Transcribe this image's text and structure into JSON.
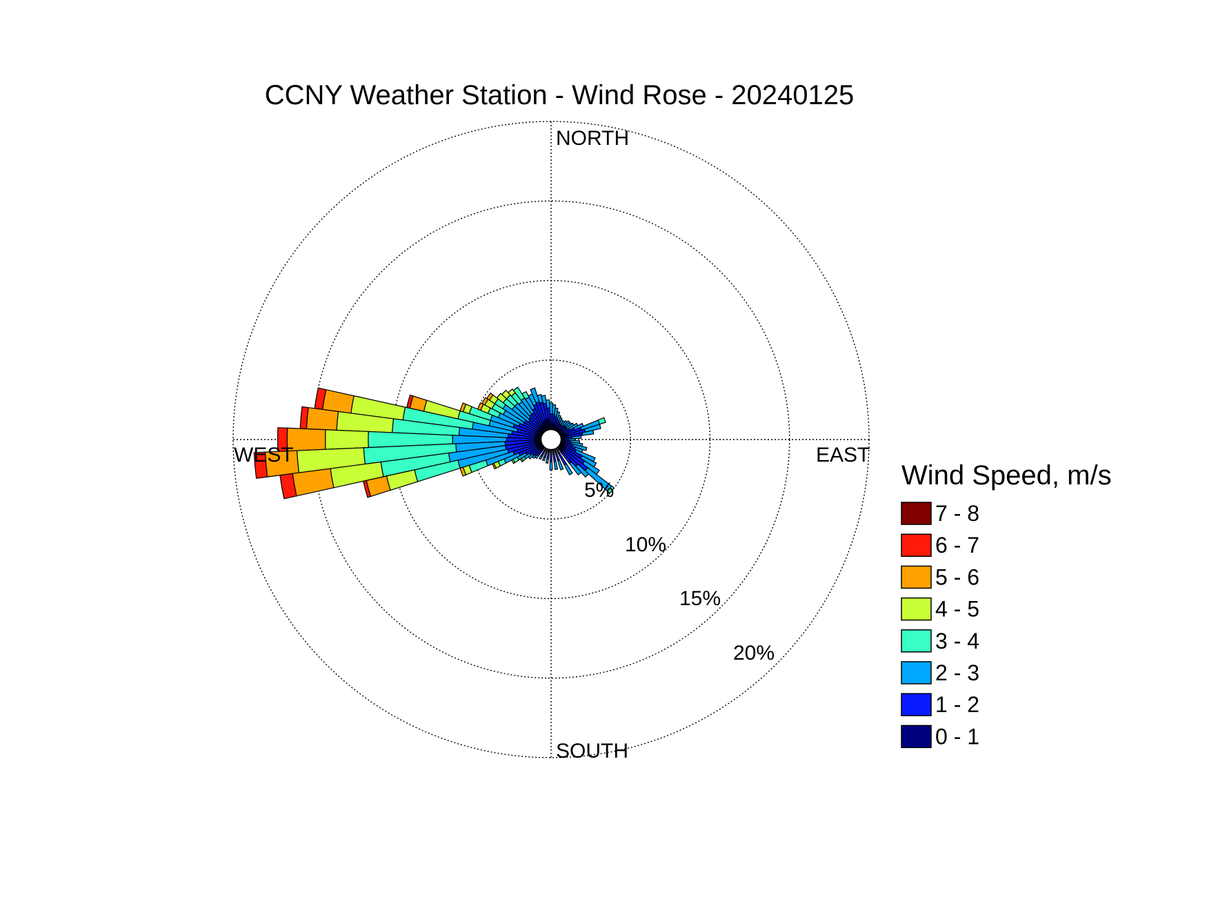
{
  "chart_data": {
    "type": "wind-rose",
    "title": "CCNY Weather Station - Wind Rose - 20240125",
    "direction_labels": {
      "north": "NORTH",
      "east": "EAST",
      "south": "SOUTH",
      "west": "WEST"
    },
    "radial_ticks": [
      {
        "value": 5,
        "label": "5%"
      },
      {
        "value": 10,
        "label": "10%"
      },
      {
        "value": 15,
        "label": "15%"
      },
      {
        "value": 20,
        "label": "20%"
      }
    ],
    "radial_max": 20,
    "units": "percent of observations",
    "grid": true,
    "legend": {
      "title": "Wind Speed, m/s",
      "placement": "right",
      "bins": [
        {
          "label": "7 - 8",
          "color": "#800000"
        },
        {
          "label": "6 - 7",
          "color": "#FF1A0A"
        },
        {
          "label": "5 - 6",
          "color": "#FFA100"
        },
        {
          "label": "4 - 5",
          "color": "#C8FF37"
        },
        {
          "label": "3 - 4",
          "color": "#38FFC4"
        },
        {
          "label": "2 - 3",
          "color": "#00A8FF"
        },
        {
          "label": "1 - 2",
          "color": "#0A1AFF"
        },
        {
          "label": "0 - 1",
          "color": "#00007F"
        }
      ]
    },
    "bin_order": [
      "0 - 1",
      "1 - 2",
      "2 - 3",
      "3 - 4",
      "4 - 5",
      "5 - 6",
      "6 - 7",
      "7 - 8"
    ],
    "sector_width_deg": 5,
    "calm_radius_percent": 0.5,
    "sectors": [
      {
        "direction": 110,
        "cumulative": [
          0.9,
          1.6,
          2.1
        ]
      },
      {
        "direction": 115,
        "cumulative": [
          0.9,
          1.7,
          3.0
        ]
      },
      {
        "direction": 120,
        "cumulative": [
          1.0,
          2.2,
          3.2
        ]
      },
      {
        "direction": 125,
        "cumulative": [
          1.0,
          2.5,
          3.6
        ]
      },
      {
        "direction": 130,
        "cumulative": [
          1.1,
          2.9,
          4.8,
          5.0
        ]
      },
      {
        "direction": 135,
        "cumulative": [
          1.0,
          2.3,
          3.2
        ]
      },
      {
        "direction": 100,
        "cumulative": [
          0.9,
          1.3,
          2.0
        ]
      },
      {
        "direction": 105,
        "cumulative": [
          0.9,
          1.4,
          2.3
        ]
      },
      {
        "direction": 95,
        "cumulative": [
          0.8,
          1.2,
          1.8
        ]
      },
      {
        "direction": 90,
        "cumulative": [
          0.7,
          1.1,
          1.5
        ]
      },
      {
        "direction": 85,
        "cumulative": [
          0.8,
          1.3,
          1.9
        ]
      },
      {
        "direction": 80,
        "cumulative": [
          1.0,
          2.0,
          2.7
        ]
      },
      {
        "direction": 75,
        "cumulative": [
          1.1,
          2.2,
          3.2
        ]
      },
      {
        "direction": 70,
        "cumulative": [
          1.0,
          2.0,
          3.2,
          3.6
        ]
      },
      {
        "direction": 65,
        "cumulative": [
          0.9,
          1.6,
          2.2
        ]
      },
      {
        "direction": 60,
        "cumulative": [
          0.8,
          1.3,
          1.9
        ]
      },
      {
        "direction": 55,
        "cumulative": [
          0.8,
          1.2,
          1.7
        ]
      },
      {
        "direction": 50,
        "cumulative": [
          0.8,
          1.2,
          1.6
        ]
      },
      {
        "direction": 45,
        "cumulative": [
          0.8,
          1.2,
          1.6
        ]
      },
      {
        "direction": 40,
        "cumulative": [
          0.8,
          1.1,
          1.5
        ]
      },
      {
        "direction": 35,
        "cumulative": [
          0.8,
          1.1,
          1.4
        ]
      },
      {
        "direction": 30,
        "cumulative": [
          0.8,
          1.1,
          1.4
        ]
      },
      {
        "direction": 25,
        "cumulative": [
          0.8,
          1.2,
          1.5
        ]
      },
      {
        "direction": 20,
        "cumulative": [
          0.8,
          1.3,
          1.6
        ]
      },
      {
        "direction": 15,
        "cumulative": [
          0.9,
          1.4,
          1.8
        ]
      },
      {
        "direction": 10,
        "cumulative": [
          1.0,
          1.5,
          2.0
        ]
      },
      {
        "direction": 5,
        "cumulative": [
          1.0,
          1.6,
          2.2
        ]
      },
      {
        "direction": 0,
        "cumulative": [
          1.0,
          1.6,
          2.3
        ]
      },
      {
        "direction": 355,
        "cumulative": [
          1.2,
          2.0,
          2.5
        ]
      },
      {
        "direction": 350,
        "cumulative": [
          1.3,
          2.3,
          2.8
        ]
      },
      {
        "direction": 345,
        "cumulative": [
          1.3,
          2.4,
          2.9
        ]
      },
      {
        "direction": 340,
        "cumulative": [
          1.2,
          2.5,
          3.4
        ]
      },
      {
        "direction": 335,
        "cumulative": [
          1.2,
          2.4,
          3.1
        ]
      },
      {
        "direction": 330,
        "cumulative": [
          1.1,
          2.2,
          3.0,
          3.4
        ]
      },
      {
        "direction": 325,
        "cumulative": [
          1.0,
          2.0,
          3.1,
          3.9
        ]
      },
      {
        "direction": 320,
        "cumulative": [
          1.1,
          2.0,
          3.0,
          3.7,
          4.0
        ]
      },
      {
        "direction": 315,
        "cumulative": [
          1.0,
          1.9,
          3.1,
          3.8,
          4.2
        ]
      },
      {
        "direction": 310,
        "cumulative": [
          0.9,
          1.8,
          3.1,
          3.8,
          4.3
        ]
      },
      {
        "direction": 305,
        "cumulative": [
          1.0,
          2.0,
          3.6,
          4.2,
          4.6,
          4.8
        ]
      },
      {
        "direction": 300,
        "cumulative": [
          1.0,
          2.0,
          3.4,
          4.2,
          4.7,
          4.9
        ]
      },
      {
        "direction": 295,
        "cumulative": [
          1.0,
          2.2,
          3.6,
          4.3,
          4.8,
          5.0
        ]
      },
      {
        "direction": 290,
        "cumulative": [
          1.0,
          2.5,
          4.0,
          5.4,
          5.8,
          6.0
        ]
      },
      {
        "direction": 285,
        "cumulative": [
          1.0,
          2.2,
          4.0,
          6.0,
          8.2,
          9.1,
          9.3
        ]
      },
      {
        "direction": 280,
        "cumulative": [
          1.0,
          2.5,
          5.0,
          9.4,
          12.7,
          14.5,
          15.0
        ]
      },
      {
        "direction": 275,
        "cumulative": [
          1.0,
          2.7,
          5.8,
          10.0,
          13.5,
          15.4,
          15.8
        ]
      },
      {
        "direction": 270,
        "cumulative": [
          1.0,
          2.8,
          6.2,
          11.5,
          14.2,
          16.6,
          17.2
        ]
      },
      {
        "direction": 265,
        "cumulative": [
          1.0,
          2.9,
          6.0,
          11.8,
          16.0,
          18.0,
          18.7
        ]
      },
      {
        "direction": 260,
        "cumulative": [
          1.0,
          2.9,
          6.5,
          10.8,
          14.0,
          16.4,
          17.2
        ]
      },
      {
        "direction": 255,
        "cumulative": [
          1.0,
          2.8,
          6.0,
          8.8,
          10.6,
          11.9,
          12.1
        ]
      },
      {
        "direction": 250,
        "cumulative": [
          1.0,
          2.5,
          4.3,
          5.4,
          5.8,
          6.0
        ]
      },
      {
        "direction": 245,
        "cumulative": [
          1.0,
          2.2,
          3.2,
          3.6,
          3.9,
          4.0
        ]
      },
      {
        "direction": 240,
        "cumulative": [
          1.0,
          1.8,
          2.4,
          2.7,
          2.8
        ]
      },
      {
        "direction": 235,
        "cumulative": [
          1.0,
          1.6,
          2.0,
          2.2,
          2.3
        ]
      },
      {
        "direction": 230,
        "cumulative": [
          0.9,
          1.5,
          1.8
        ]
      },
      {
        "direction": 225,
        "cumulative": [
          0.9,
          1.4,
          1.6
        ]
      },
      {
        "direction": 220,
        "cumulative": [
          0.9,
          1.3,
          1.5
        ]
      },
      {
        "direction": 210,
        "cumulative": [
          0.8,
          1.2,
          1.4
        ]
      },
      {
        "direction": 200,
        "cumulative": [
          0.8,
          1.2,
          1.4
        ]
      },
      {
        "direction": 190,
        "cumulative": [
          0.8,
          1.2,
          1.5
        ]
      },
      {
        "direction": 180,
        "cumulative": [
          0.9,
          1.4,
          1.9
        ]
      },
      {
        "direction": 170,
        "cumulative": [
          0.9,
          1.4,
          1.9
        ]
      },
      {
        "direction": 160,
        "cumulative": [
          0.9,
          1.4,
          2.0
        ]
      },
      {
        "direction": 150,
        "cumulative": [
          1.0,
          1.8,
          2.5
        ]
      },
      {
        "direction": 140,
        "cumulative": [
          1.0,
          1.9,
          2.8
        ]
      }
    ]
  }
}
